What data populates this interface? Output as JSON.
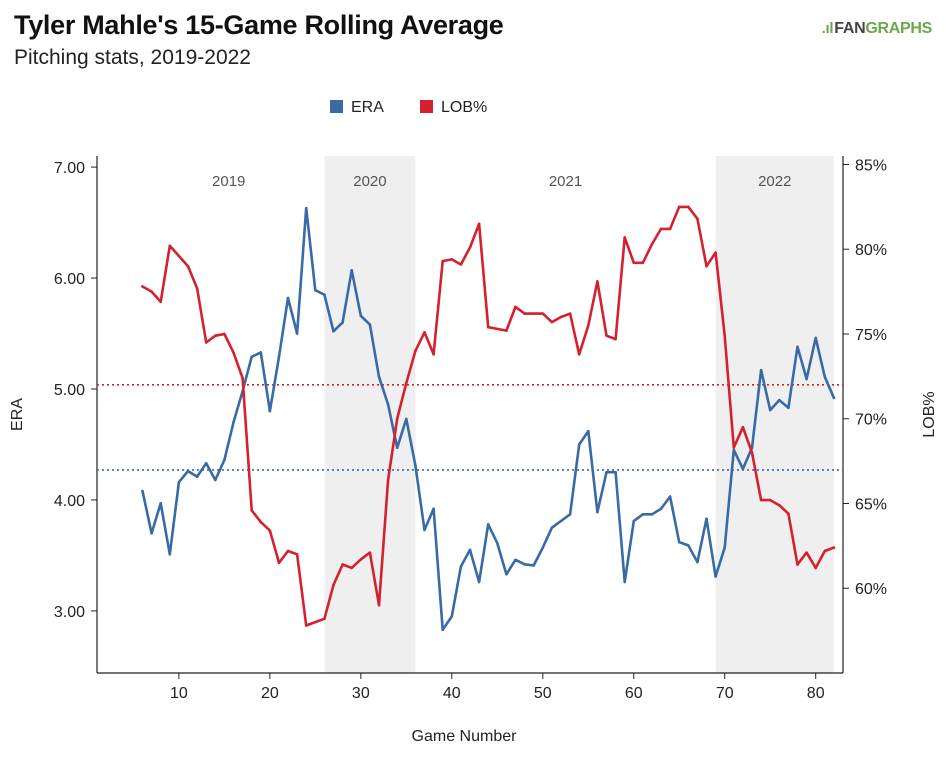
{
  "header": {
    "title": "Tyler Mahle's 15-Game Rolling Average",
    "subtitle": "Pitching stats, 2019-2022"
  },
  "logo": {
    "mark": ".ıl",
    "text_a": "FAN",
    "text_b": "GRAPHS"
  },
  "chart_data": {
    "type": "line",
    "xlabel": "Game Number",
    "ylabel_left": "ERA",
    "ylabel_right": "LOB%",
    "xlim": [
      1,
      83
    ],
    "ylim_left": [
      2.44,
      7.1
    ],
    "ylim_right": [
      55,
      85.5
    ],
    "x_ticks": [
      10,
      20,
      30,
      40,
      50,
      60,
      70,
      80
    ],
    "y_left_ticks": [
      3,
      4,
      5,
      6,
      7
    ],
    "y_left_tick_labels": [
      "3.00",
      "4.00",
      "5.00",
      "6.00",
      "7.00"
    ],
    "y_right_ticks": [
      60,
      65,
      70,
      75,
      80,
      85
    ],
    "y_right_tick_labels": [
      "60%",
      "65%",
      "70%",
      "75%",
      "80%",
      "85%"
    ],
    "legend_position": "top-center",
    "grid": false,
    "seasons": [
      {
        "label": "2019",
        "start": 1,
        "end": 26,
        "shaded": false
      },
      {
        "label": "2020",
        "start": 26,
        "end": 36,
        "shaded": true
      },
      {
        "label": "2021",
        "start": 36,
        "end": 69,
        "shaded": false
      },
      {
        "label": "2022",
        "start": 69,
        "end": 82,
        "shaded": true
      }
    ],
    "reference_lines": [
      {
        "series": "ERA",
        "axis": "left",
        "value": 4.27,
        "color": "#386ba6"
      },
      {
        "series": "LOB%",
        "axis": "right",
        "value": 72.0,
        "color": "#d4212f"
      }
    ],
    "series": [
      {
        "name": "ERA",
        "axis": "left",
        "color": "#386ba6",
        "x": [
          6,
          7,
          8,
          9,
          10,
          11,
          12,
          13,
          14,
          15,
          16,
          17,
          18,
          19,
          20,
          21,
          22,
          23,
          24,
          25,
          26,
          27,
          28,
          29,
          30,
          31,
          32,
          33,
          34,
          35,
          36,
          37,
          38,
          39,
          40,
          41,
          42,
          43,
          44,
          45,
          46,
          47,
          48,
          49,
          50,
          51,
          52,
          53,
          54,
          55,
          56,
          57,
          58,
          59,
          60,
          61,
          62,
          63,
          64,
          65,
          66,
          67,
          68,
          69,
          70,
          71,
          72,
          73,
          74,
          75,
          76,
          77,
          78,
          79,
          80,
          81,
          82
        ],
        "values": [
          4.08,
          3.7,
          3.97,
          3.51,
          4.16,
          4.26,
          4.21,
          4.33,
          4.18,
          4.36,
          4.7,
          4.98,
          5.29,
          5.33,
          4.8,
          5.29,
          5.82,
          5.5,
          6.63,
          5.89,
          5.85,
          5.52,
          5.6,
          6.07,
          5.66,
          5.58,
          5.11,
          4.86,
          4.47,
          4.73,
          4.31,
          3.73,
          3.92,
          2.83,
          2.95,
          3.4,
          3.55,
          3.26,
          3.78,
          3.61,
          3.33,
          3.46,
          3.42,
          3.41,
          3.57,
          3.75,
          3.81,
          3.87,
          4.5,
          4.62,
          3.89,
          4.25,
          4.25,
          3.26,
          3.81,
          3.87,
          3.87,
          3.92,
          4.03,
          3.62,
          3.59,
          3.44,
          3.83,
          3.31,
          3.57,
          4.45,
          4.28,
          4.47,
          5.17,
          4.81,
          4.9,
          4.83,
          5.38,
          5.09,
          5.46,
          5.11,
          4.92
        ]
      },
      {
        "name": "LOB%",
        "axis": "right",
        "color": "#d4212f",
        "x": [
          6,
          7,
          8,
          9,
          10,
          11,
          12,
          13,
          14,
          15,
          16,
          17,
          18,
          19,
          20,
          21,
          22,
          23,
          24,
          25,
          26,
          27,
          28,
          29,
          30,
          31,
          32,
          33,
          34,
          35,
          36,
          37,
          38,
          39,
          40,
          41,
          42,
          43,
          44,
          45,
          46,
          47,
          48,
          49,
          50,
          51,
          52,
          53,
          54,
          55,
          56,
          57,
          58,
          59,
          60,
          61,
          62,
          63,
          64,
          65,
          66,
          67,
          68,
          69,
          70,
          71,
          72,
          73,
          74,
          75,
          76,
          77,
          78,
          79,
          80,
          81,
          82
        ],
        "values": [
          77.8,
          77.5,
          76.9,
          80.2,
          79.6,
          79.0,
          77.7,
          74.5,
          74.9,
          75.0,
          73.9,
          72.4,
          64.6,
          63.9,
          63.4,
          61.5,
          62.2,
          62.0,
          57.8,
          58.0,
          58.2,
          60.2,
          61.4,
          61.2,
          61.7,
          62.1,
          59.0,
          66.4,
          70.0,
          72.1,
          74.0,
          75.1,
          73.8,
          79.3,
          79.4,
          79.1,
          80.1,
          81.5,
          75.4,
          75.3,
          75.2,
          76.6,
          76.2,
          76.2,
          76.2,
          75.7,
          76.0,
          76.2,
          73.8,
          75.5,
          78.1,
          74.9,
          74.7,
          80.7,
          79.2,
          79.2,
          80.3,
          81.2,
          81.2,
          82.5,
          82.5,
          81.8,
          79.0,
          79.8,
          74.9,
          68.3,
          69.5,
          68.0,
          65.2,
          65.2,
          64.9,
          64.4,
          61.4,
          62.1,
          61.2,
          62.2,
          62.4
        ]
      }
    ]
  }
}
